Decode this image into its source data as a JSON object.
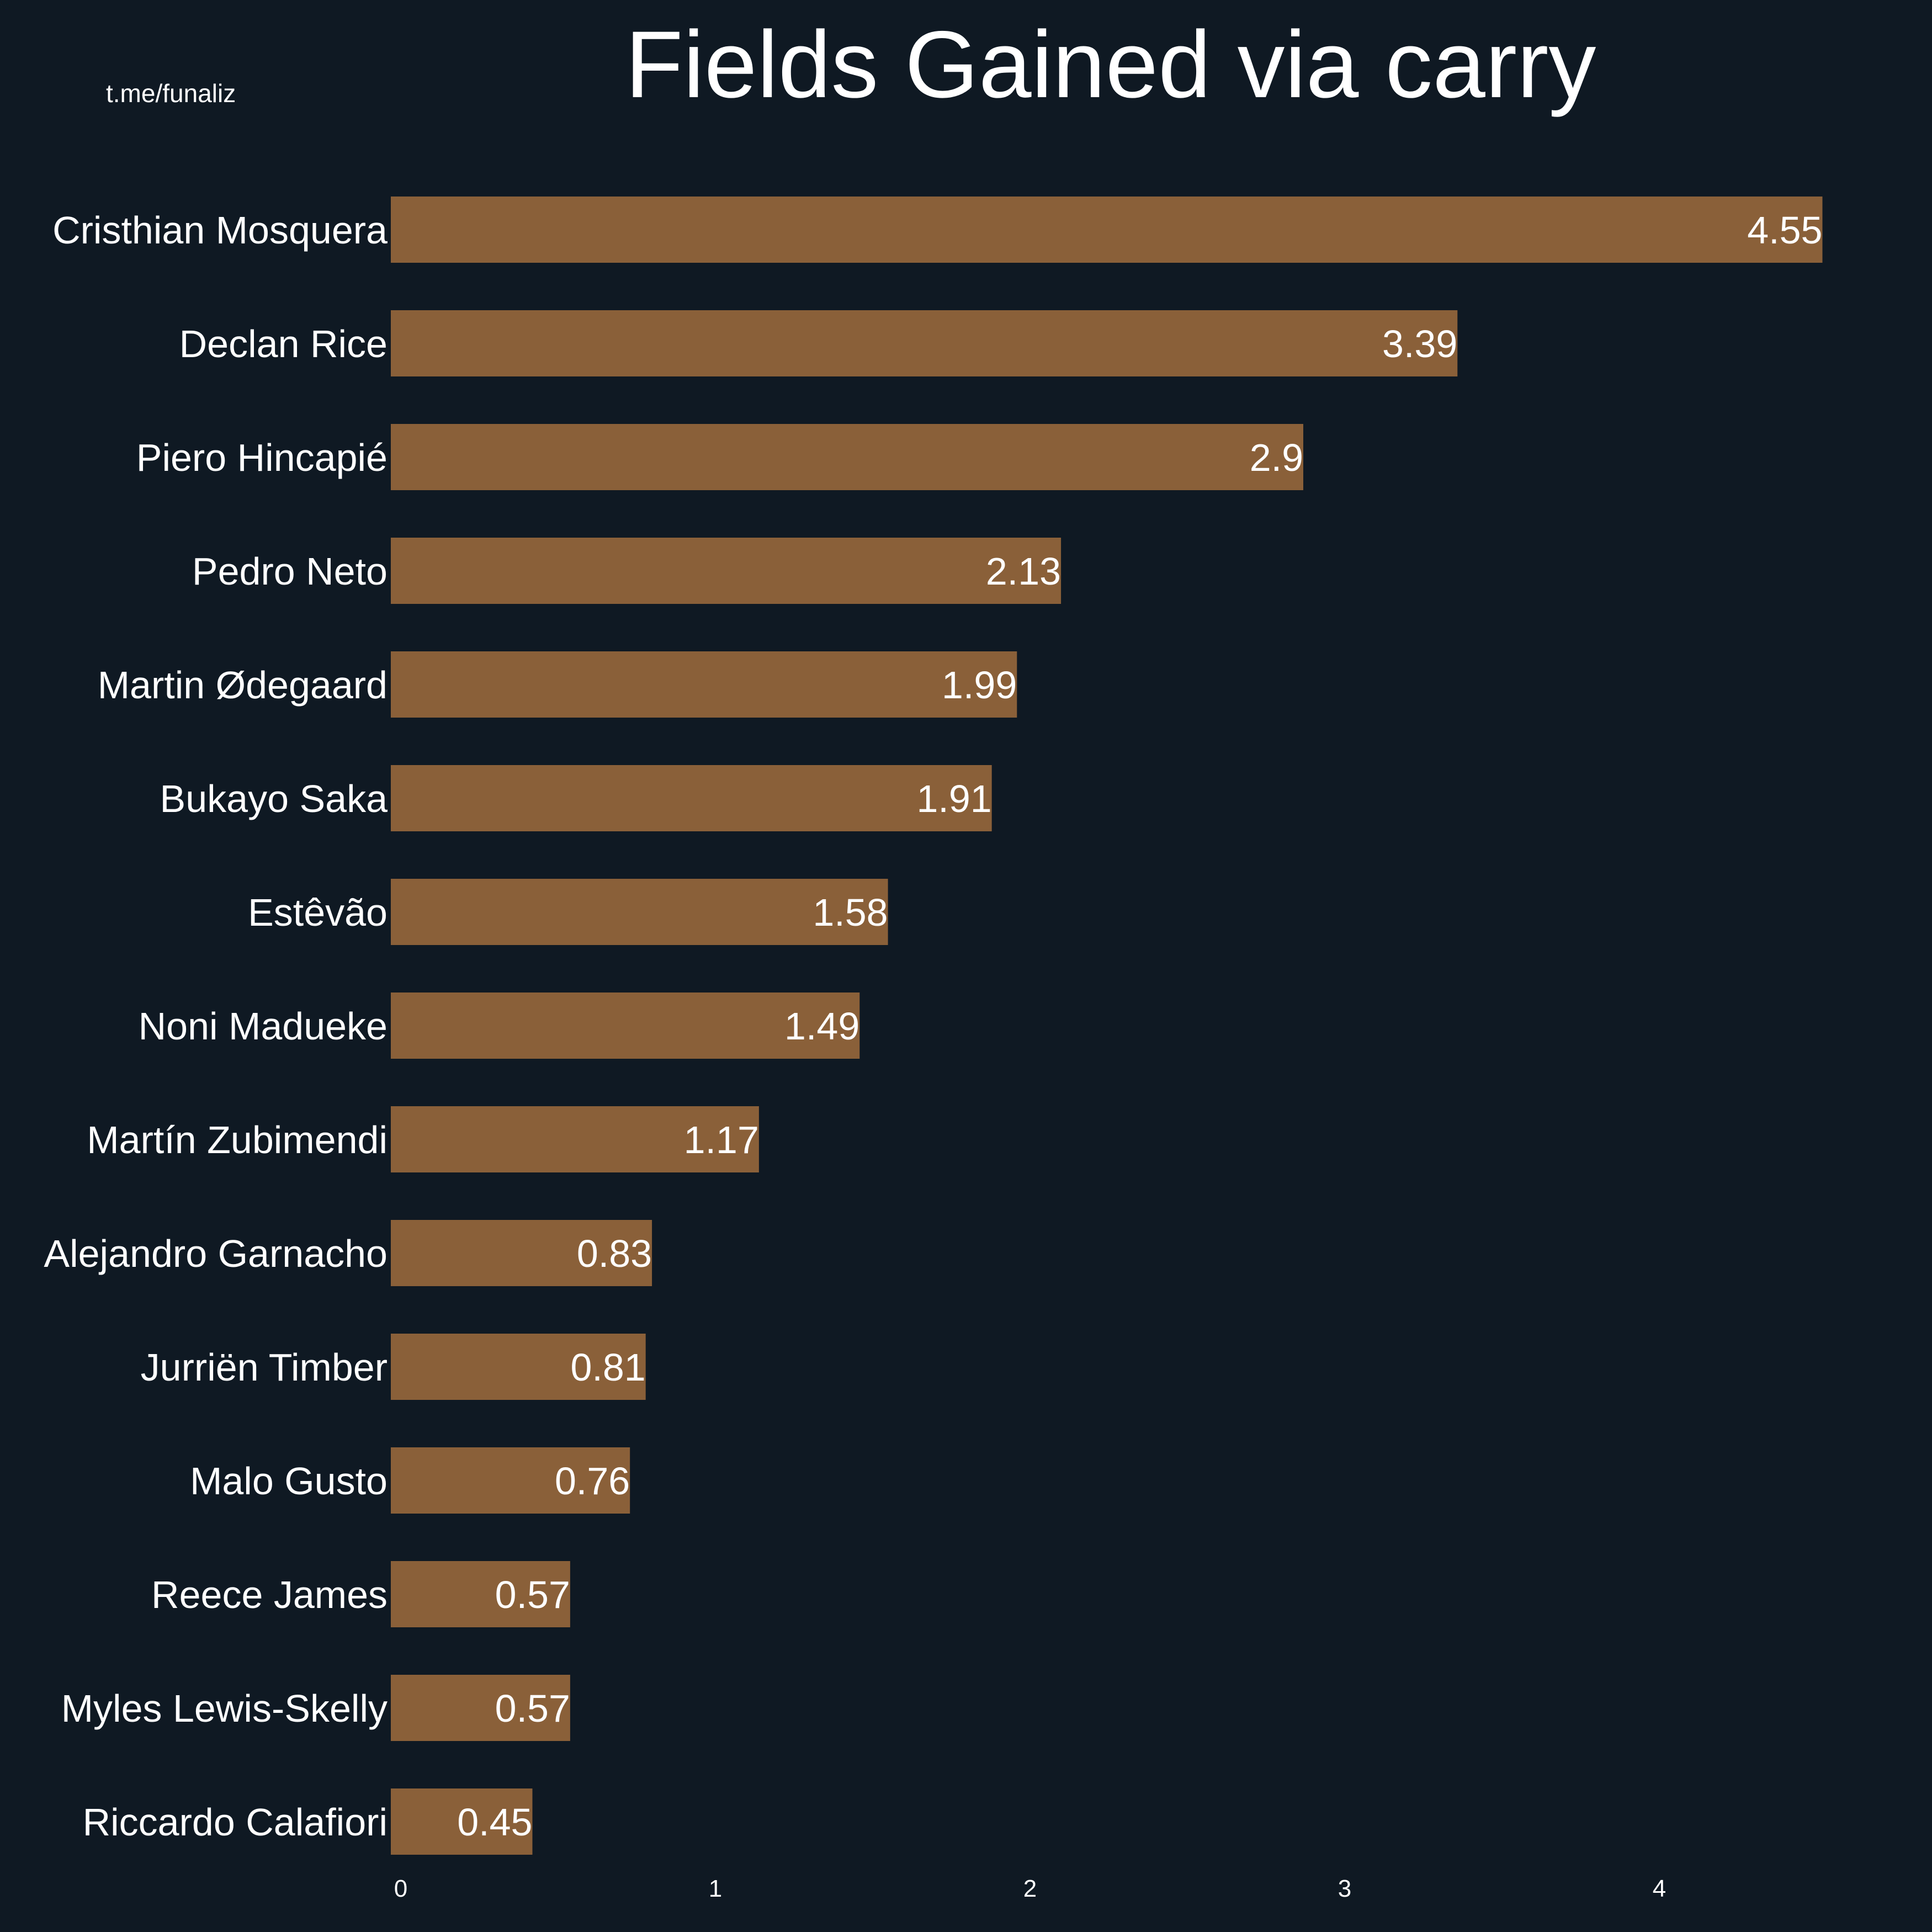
{
  "chart_data": {
    "type": "bar",
    "orientation": "horizontal",
    "title": "Fields Gained via carry",
    "watermark": "t.me/funaliz",
    "xlabel": "",
    "ylabel": "",
    "categories": [
      "Cristhian Mosquera",
      "Declan Rice",
      "Piero Hincapié",
      "Pedro Neto",
      "Martin Ødegaard",
      "Bukayo Saka",
      "Estêvão",
      "Noni Madueke",
      "Martín Zubimendi",
      "Alejandro Garnacho",
      "Jurriën Timber",
      "Malo Gusto",
      "Reece James",
      "Myles Lewis-Skelly",
      "Riccardo Calafiori"
    ],
    "values": [
      4.55,
      3.39,
      2.9,
      2.13,
      1.99,
      1.91,
      1.58,
      1.49,
      1.17,
      0.83,
      0.81,
      0.76,
      0.57,
      0.57,
      0.45
    ],
    "value_labels": [
      "4.55",
      "3.39",
      "2.9",
      "2.13",
      "1.99",
      "1.91",
      "1.58",
      "1.49",
      "1.17",
      "0.83",
      "0.81",
      "0.76",
      "0.57",
      "0.57",
      "0.45"
    ],
    "xticks": [
      0,
      1,
      2,
      3,
      4
    ],
    "xlim": [
      0,
      4.88
    ],
    "grid": false,
    "legend": "none",
    "colors": {
      "background": "#0f1923",
      "bar": "#8a6039",
      "text": "#ffffff"
    }
  }
}
